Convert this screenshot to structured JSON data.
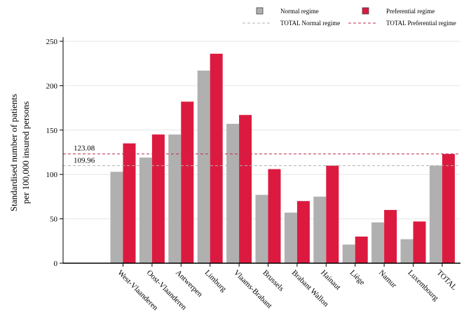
{
  "chart_data": {
    "type": "bar",
    "ylabel_lines": [
      "Standardised number of patients",
      "per 100,000 insured persons"
    ],
    "categories": [
      "West-Vlaanderen",
      "Oost-Vlaanderen",
      "Antwerpen",
      "Limburg",
      "Vlaams-Brabant",
      "Brussels",
      "Brabant Wallon",
      "Hainaut",
      "Liège",
      "Namur",
      "Luxembourg",
      "TOTAL"
    ],
    "series": [
      {
        "name": "Normal regime",
        "color": "#b0b0b0",
        "values": [
          103,
          119,
          145,
          217,
          157,
          77,
          57,
          75,
          21,
          46,
          27,
          109.96
        ]
      },
      {
        "name": "Preferential regime",
        "color": "#dc1a40",
        "values": [
          135,
          145,
          182,
          236,
          167,
          106,
          70,
          110,
          30,
          60,
          47,
          123.08
        ]
      }
    ],
    "reference_lines": [
      {
        "name": "TOTAL Normal regime",
        "value": 109.96,
        "label": "109.96",
        "color": "#b0b0b0"
      },
      {
        "name": "TOTAL Preferential regime",
        "value": 123.08,
        "label": "123.08",
        "color": "#c0284a"
      }
    ],
    "yticks": [
      "0",
      "50",
      "100",
      "150",
      "200",
      "250"
    ],
    "ylim": [
      0,
      250
    ],
    "grid": true,
    "legend_position": "top"
  }
}
